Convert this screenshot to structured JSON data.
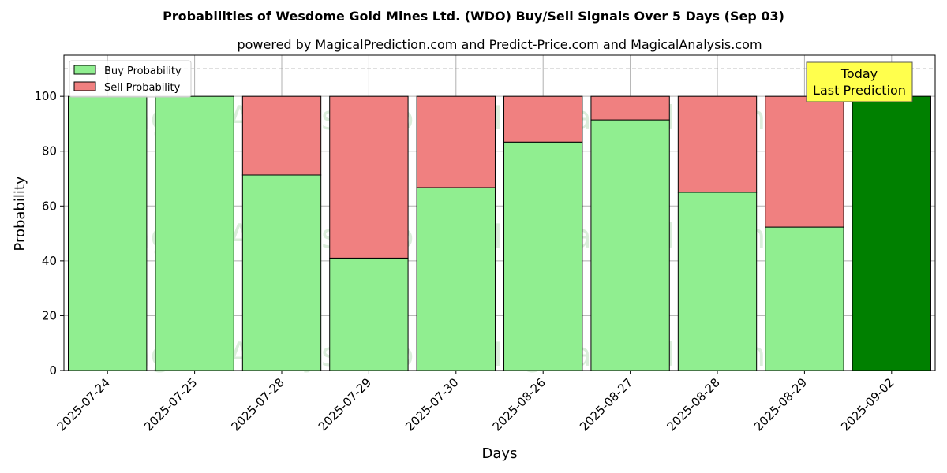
{
  "chart_data": {
    "type": "bar",
    "stacked": true,
    "title": "Probabilities of Wesdome Gold Mines Ltd. (WDO) Buy/Sell Signals Over 5 Days (Sep 03)",
    "subtitle": "powered by MagicalPrediction.com and Predict-Price.com and MagicalAnalysis.com",
    "xlabel": "Days",
    "ylabel": "Probability",
    "ylim": [
      0,
      115
    ],
    "yticks": [
      0,
      20,
      40,
      60,
      80,
      100
    ],
    "grid": true,
    "reference_line": 110,
    "categories": [
      "2025-07-24",
      "2025-07-25",
      "2025-07-28",
      "2025-07-29",
      "2025-07-30",
      "2025-08-26",
      "2025-08-27",
      "2025-08-28",
      "2025-08-29",
      "2025-09-02"
    ],
    "series": [
      {
        "name": "Buy Probability",
        "color": "#90ee90",
        "values": [
          100,
          100,
          71.3,
          41.0,
          66.7,
          83.3,
          91.4,
          65.0,
          52.3,
          100
        ]
      },
      {
        "name": "Sell Probability",
        "color": "#f08080",
        "values": [
          0,
          0,
          28.7,
          59.0,
          33.3,
          16.7,
          8.6,
          35.0,
          47.7,
          0
        ]
      }
    ],
    "highlight": {
      "index": 9,
      "color": "#008000"
    },
    "legend": {
      "position": "top-left",
      "entries": [
        "Buy Probability",
        "Sell Probability"
      ]
    },
    "annotation": {
      "lines": [
        "Today",
        "Last Prediction"
      ],
      "background": "#ffff4d",
      "position": "top-right"
    },
    "watermarks": [
      "MagicalAnalysis.com",
      "MagicalPrediction.com"
    ]
  }
}
